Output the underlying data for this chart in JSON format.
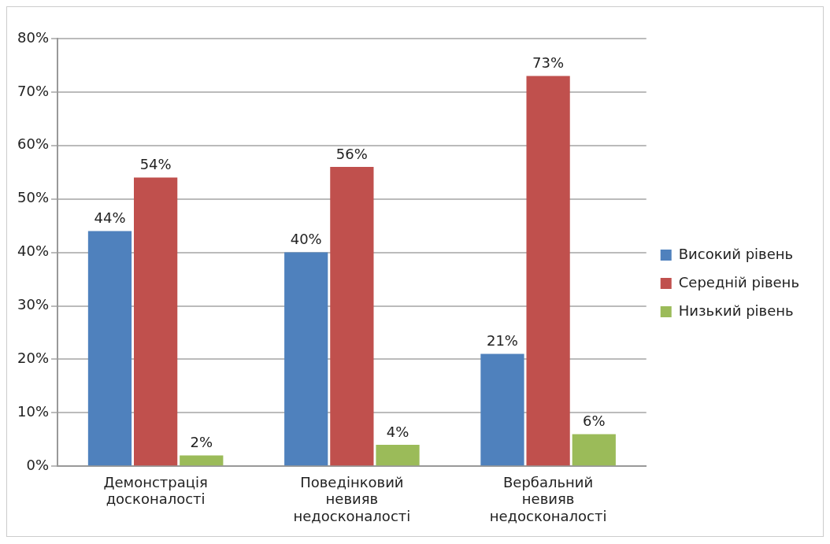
{
  "chart_data": {
    "type": "bar",
    "categories": [
      "Демонстрація досконалості",
      "Поведінковий невияв недосконалості",
      "Вербальний невияв недосконалості"
    ],
    "series": [
      {
        "name": "Високий рівень",
        "color": "#4f81bd",
        "values": [
          44,
          40,
          21
        ],
        "value_labels": [
          "44%",
          "40%",
          "21%"
        ]
      },
      {
        "name": "Середній рівень",
        "color": "#c0504d",
        "values": [
          54,
          56,
          73
        ],
        "value_labels": [
          "54%",
          "56%",
          "73%"
        ]
      },
      {
        "name": "Низький рівень",
        "color": "#9bbb59",
        "values": [
          2,
          4,
          6
        ],
        "value_labels": [
          "2%",
          "4%",
          "6%"
        ]
      }
    ],
    "ylim": [
      0,
      80
    ],
    "yticks": [
      {
        "value": 0,
        "label": "0%"
      },
      {
        "value": 10,
        "label": "10%"
      },
      {
        "value": 20,
        "label": "20%"
      },
      {
        "value": 30,
        "label": "30%"
      },
      {
        "value": 40,
        "label": "40%"
      },
      {
        "value": 50,
        "label": "50%"
      },
      {
        "value": 60,
        "label": "60%"
      },
      {
        "value": 70,
        "label": "70%"
      },
      {
        "value": 80,
        "label": "80%"
      }
    ],
    "grid": "y",
    "legend": "right"
  }
}
